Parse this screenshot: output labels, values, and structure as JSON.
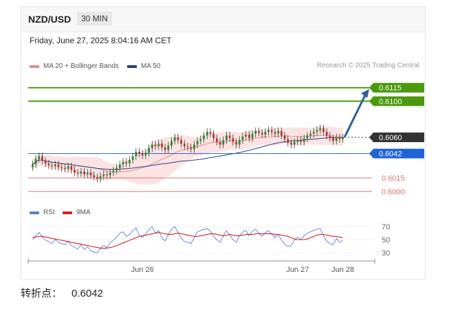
{
  "header": {
    "symbol": "NZD/USD",
    "timeframe": "30 MIN"
  },
  "datetime": "Friday, June 27, 2025 8:04:16 AM CET",
  "source": "Research © 2025 Trading Central",
  "legend_price": [
    {
      "label": "MA 20 + Bollinger Bands",
      "color": "#e88a8a"
    },
    {
      "label": "MA 50",
      "color": "#1f3f8f"
    }
  ],
  "legend_rsi": [
    {
      "label": "RSI",
      "color": "#5b7fd6"
    },
    {
      "label": "9MA",
      "color": "#d22323"
    }
  ],
  "footer": {
    "label": "转折点：",
    "value": "0.6042"
  },
  "colors": {
    "up": "#2e8b2e",
    "down": "#c0392b",
    "resistance": "#4a9a0c",
    "current": "#333333",
    "pivot": "#1f63d8",
    "support": "#e07070",
    "arrow": "#2f5f9a"
  },
  "chart_data": [
    {
      "type": "candlestick",
      "ylim": [
        0.599,
        0.613
      ],
      "x_ticks": [
        {
          "label": "Jun 26",
          "index": 34
        },
        {
          "label": "Jun 27",
          "index": 82
        },
        {
          "label": "Jun 28",
          "index": 96
        }
      ],
      "levels": [
        {
          "value": 0.6115,
          "label": "0.6115",
          "kind": "resistance"
        },
        {
          "value": 0.61,
          "label": "0.6100",
          "kind": "resistance"
        },
        {
          "value": 0.606,
          "label": "0.6060",
          "kind": "current"
        },
        {
          "value": 0.6042,
          "label": "0.6042",
          "kind": "pivot"
        },
        {
          "value": 0.6015,
          "label": "0.6015",
          "kind": "support"
        },
        {
          "value": 0.6,
          "label": "0.6000",
          "kind": "support"
        }
      ],
      "projection": {
        "from": 0.606,
        "to": 0.6115
      },
      "close": [
        0.603,
        0.6036,
        0.6039,
        0.6034,
        0.6031,
        0.6029,
        0.6028,
        0.603,
        0.6027,
        0.6026,
        0.6025,
        0.6028,
        0.6024,
        0.6021,
        0.602,
        0.6022,
        0.6019,
        0.6021,
        0.6018,
        0.6016,
        0.6014,
        0.6017,
        0.6019,
        0.6018,
        0.6021,
        0.6023,
        0.6026,
        0.603,
        0.6033,
        0.6031,
        0.6035,
        0.6039,
        0.6044,
        0.6042,
        0.604,
        0.6043,
        0.6048,
        0.6052,
        0.605,
        0.6053,
        0.6049,
        0.6046,
        0.6051,
        0.6056,
        0.606,
        0.6057,
        0.6053,
        0.605,
        0.6049,
        0.6047,
        0.6052,
        0.6056,
        0.6058,
        0.6062,
        0.6066,
        0.6064,
        0.6059,
        0.6055,
        0.6052,
        0.6057,
        0.6062,
        0.6059,
        0.6055,
        0.6052,
        0.6057,
        0.6061,
        0.6063,
        0.6059,
        0.6064,
        0.6067,
        0.6065,
        0.6063,
        0.6066,
        0.6068,
        0.6066,
        0.6064,
        0.6067,
        0.6062,
        0.6058,
        0.6054,
        0.6052,
        0.6055,
        0.6057,
        0.6055,
        0.6059,
        0.6062,
        0.6064,
        0.6066,
        0.6068,
        0.607,
        0.6066,
        0.6062,
        0.6059,
        0.6056,
        0.606,
        0.6058,
        0.606
      ]
    },
    {
      "type": "line",
      "title": "RSI",
      "ylim": [
        30,
        70
      ],
      "y_ticks": [
        70,
        50,
        30
      ],
      "series": [
        {
          "name": "RSI",
          "values": [
            50,
            56,
            61,
            54,
            49,
            47,
            44,
            50,
            46,
            44,
            42,
            48,
            41,
            38,
            36,
            42,
            35,
            39,
            33,
            31,
            30,
            37,
            41,
            38,
            45,
            49,
            54,
            60,
            62,
            55,
            58,
            64,
            68,
            57,
            53,
            59,
            65,
            70,
            60,
            64,
            53,
            48,
            58,
            66,
            70,
            61,
            53,
            47,
            46,
            44,
            53,
            62,
            64,
            66,
            67,
            63,
            55,
            50,
            46,
            56,
            64,
            57,
            50,
            46,
            56,
            62,
            64,
            56,
            63,
            66,
            60,
            55,
            61,
            64,
            58,
            53,
            58,
            49,
            43,
            40,
            41,
            49,
            54,
            50,
            56,
            60,
            62,
            64,
            66,
            67,
            56,
            48,
            44,
            42,
            52,
            46,
            49
          ]
        },
        {
          "name": "9MA",
          "values": [
            53,
            54,
            55,
            55,
            54,
            53,
            52,
            51,
            50,
            49,
            48,
            47,
            46,
            45,
            44,
            43,
            42,
            41,
            40,
            39,
            38,
            37,
            37,
            37,
            38,
            39,
            41,
            43,
            45,
            47,
            49,
            51,
            53,
            55,
            56,
            57,
            58,
            59,
            60,
            61,
            60,
            59,
            58,
            58,
            59,
            60,
            59,
            58,
            57,
            56,
            55,
            55,
            56,
            57,
            58,
            59,
            59,
            58,
            57,
            56,
            57,
            58,
            57,
            56,
            56,
            57,
            58,
            58,
            58,
            59,
            59,
            59,
            59,
            59,
            59,
            58,
            58,
            57,
            56,
            55,
            53,
            51,
            50,
            50,
            50,
            51,
            53,
            55,
            57,
            58,
            58,
            57,
            56,
            55,
            55,
            54,
            53
          ]
        }
      ]
    }
  ]
}
